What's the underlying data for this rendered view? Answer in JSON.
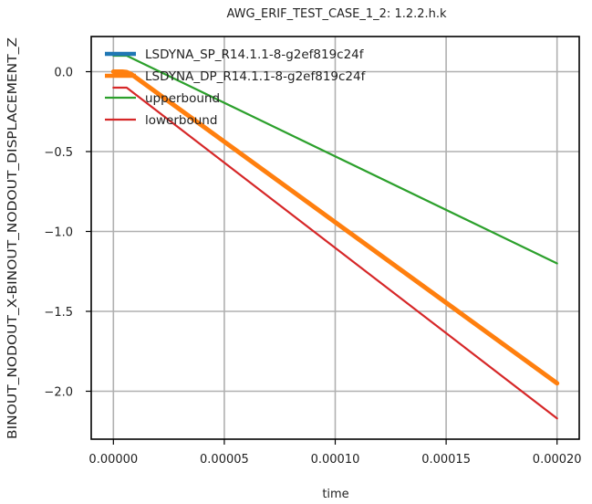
{
  "chart_data": {
    "type": "line",
    "title": "AWG_ERIF_TEST_CASE_1_2: 1.2.2.h.k",
    "xlabel": "time",
    "ylabel": "BINOUT_NODOUT_X-BINOUT_NODOUT_DISPLACEMENT_Z",
    "xlim": [
      -1e-05,
      0.00021
    ],
    "ylim": [
      -2.3,
      0.22
    ],
    "xticks": [
      0,
      5e-05,
      0.0001,
      0.00015,
      0.0002
    ],
    "xtick_labels": [
      "0.00000",
      "0.00005",
      "0.00010",
      "0.00015",
      "0.00020"
    ],
    "yticks": [
      0.0,
      -0.5,
      -1.0,
      -1.5,
      -2.0
    ],
    "ytick_labels": [
      "0.0",
      "−0.5",
      "−1.0",
      "−1.5",
      "−2.0"
    ],
    "grid": true,
    "legend_position": "top-left",
    "series": [
      {
        "name": "LSDYNA_SP_R14.1.1-8-g2ef819c24f",
        "color": "#1f77b4",
        "x": [
          0,
          2e-06,
          4e-06,
          6e-06,
          8e-06,
          0.0002
        ],
        "y": [
          0.0,
          0.0,
          0.0,
          -0.003,
          -0.015,
          -1.95
        ]
      },
      {
        "name": "LSDYNA_DP_R14.1.1-8-g2ef819c24f",
        "color": "#ff7f0e",
        "x": [
          0,
          2e-06,
          4e-06,
          6e-06,
          8e-06,
          0.0002
        ],
        "y": [
          0.0,
          0.0,
          0.0,
          -0.003,
          -0.015,
          -1.95
        ]
      },
      {
        "name": "upperbound",
        "color": "#2ca02c",
        "x": [
          0,
          6e-06,
          0.0002
        ],
        "y": [
          0.1,
          0.1,
          -1.2
        ]
      },
      {
        "name": "lowerbound",
        "color": "#d62728",
        "x": [
          0,
          6e-06,
          0.0002
        ],
        "y": [
          -0.1,
          -0.1,
          -2.17
        ]
      }
    ]
  }
}
